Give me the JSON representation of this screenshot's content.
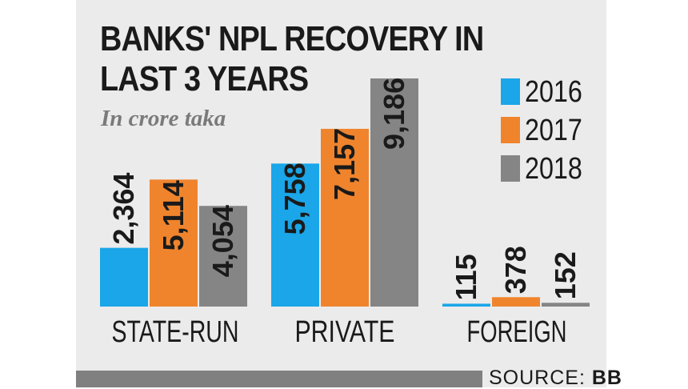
{
  "chart_data": {
    "type": "bar",
    "title": "BANKS' NPL RECOVERY IN LAST 3 YEARS",
    "subtitle": "In crore taka",
    "categories": [
      "STATE-RUN",
      "PRIVATE",
      "FOREIGN"
    ],
    "series": [
      {
        "name": "2016",
        "color": "#1aa6e8",
        "values": [
          2364,
          5758,
          115
        ],
        "labels": [
          "2,364",
          "5,758",
          "115"
        ]
      },
      {
        "name": "2017",
        "color": "#f0842d",
        "values": [
          5114,
          7157,
          378
        ],
        "labels": [
          "5,114",
          "7,157",
          "378"
        ]
      },
      {
        "name": "2018",
        "color": "#858585",
        "values": [
          4054,
          9186,
          152
        ],
        "labels": [
          "4,054",
          "9,186",
          "152"
        ]
      }
    ],
    "ylim": [
      0,
      9186
    ],
    "grid": false,
    "legend_position": "top-right"
  },
  "footer": {
    "source_prefix": "SOURCE:",
    "source_name": "BB"
  }
}
